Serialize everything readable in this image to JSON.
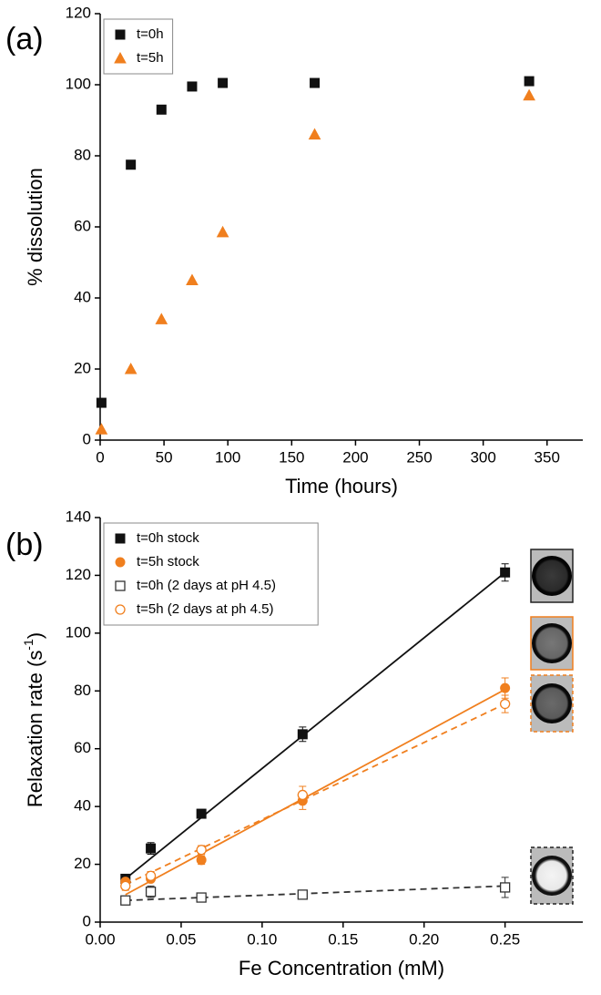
{
  "chart_data": [
    {
      "type": "scatter",
      "panel_label": "(a)",
      "xlabel": "Time (hours)",
      "ylabel": "% dissolution",
      "xlim": [
        0,
        378
      ],
      "ylim": [
        0,
        120
      ],
      "xticks": [
        0,
        50,
        100,
        150,
        200,
        250,
        300,
        350
      ],
      "yticks": [
        0,
        20,
        40,
        60,
        80,
        100,
        120
      ],
      "legend": "upper left",
      "x": [
        1,
        24,
        48,
        72,
        96,
        168,
        336
      ],
      "series": [
        {
          "name": "t=0h",
          "color": "#111111",
          "marker": "square",
          "filled": true,
          "values": [
            10.5,
            77.5,
            93,
            99.5,
            100.5,
            100.5,
            101
          ]
        },
        {
          "name": "t=5h",
          "color": "#f07f1e",
          "marker": "triangle",
          "filled": true,
          "values": [
            3,
            20,
            34,
            45,
            58.5,
            86,
            97
          ]
        }
      ]
    },
    {
      "type": "scatter",
      "panel_label": "(b)",
      "xlabel": "Fe Concentration (mM)",
      "ylabel": "Relaxation rate (s",
      "ylabel_sup": "-1",
      "ylabel_end": ")",
      "xlim": [
        0,
        0.298
      ],
      "ylim": [
        0,
        140
      ],
      "xticks": [
        {
          "value": 0,
          "label": "0.00"
        },
        {
          "value": 0.05,
          "label": "0.05"
        },
        {
          "value": 0.1,
          "label": "0.10"
        },
        {
          "value": 0.15,
          "label": "0.15"
        },
        {
          "value": 0.2,
          "label": "0.20"
        },
        {
          "value": 0.25,
          "label": "0.25"
        }
      ],
      "yticks": [
        0,
        20,
        40,
        60,
        80,
        100,
        120,
        140
      ],
      "legend": "upper left",
      "x": [
        0.015625,
        0.03125,
        0.0625,
        0.125,
        0.25
      ],
      "series": [
        {
          "name": "t=0h stock",
          "color": "#111111",
          "marker": "square",
          "filled": true,
          "values": [
            15,
            25.5,
            37.5,
            65,
            121
          ],
          "errors": [
            1.5,
            2,
            1.5,
            2.5,
            3
          ],
          "fit": {
            "x": [
              0.015625,
              0.25
            ],
            "y": [
              15,
              121
            ],
            "dashed": false
          }
        },
        {
          "name": "t=5h stock",
          "color": "#f07f1e",
          "marker": "circle",
          "filled": true,
          "values": [
            14,
            15,
            21.5,
            42,
            81
          ],
          "errors": [
            1,
            1,
            1.5,
            3,
            3.5
          ],
          "fit": {
            "x": [
              0.015625,
              0.25
            ],
            "y": [
              9.5,
              80.5
            ],
            "dashed": false
          }
        },
        {
          "name": "t=0h (2 days at pH 4.5)",
          "color": "#333333",
          "marker": "square",
          "filled": false,
          "values": [
            7.5,
            10.5,
            8.5,
            9.5,
            12
          ],
          "errors": [
            1,
            2,
            1,
            1,
            3.5
          ],
          "fit": {
            "x": [
              0.015625,
              0.25
            ],
            "y": [
              7.5,
              12.5
            ],
            "dashed": true
          }
        },
        {
          "name": "t=5h (2 days at ph 4.5)",
          "color": "#f07f1e",
          "marker": "circle",
          "filled": false,
          "values": [
            12.5,
            16,
            25,
            44,
            75.5
          ],
          "errors": [
            1.5,
            1.5,
            1.5,
            3,
            3
          ],
          "fit": {
            "x": [
              0.015625,
              0.25
            ],
            "y": [
              13,
              75.5
            ],
            "dashed": true
          }
        }
      ]
    }
  ]
}
